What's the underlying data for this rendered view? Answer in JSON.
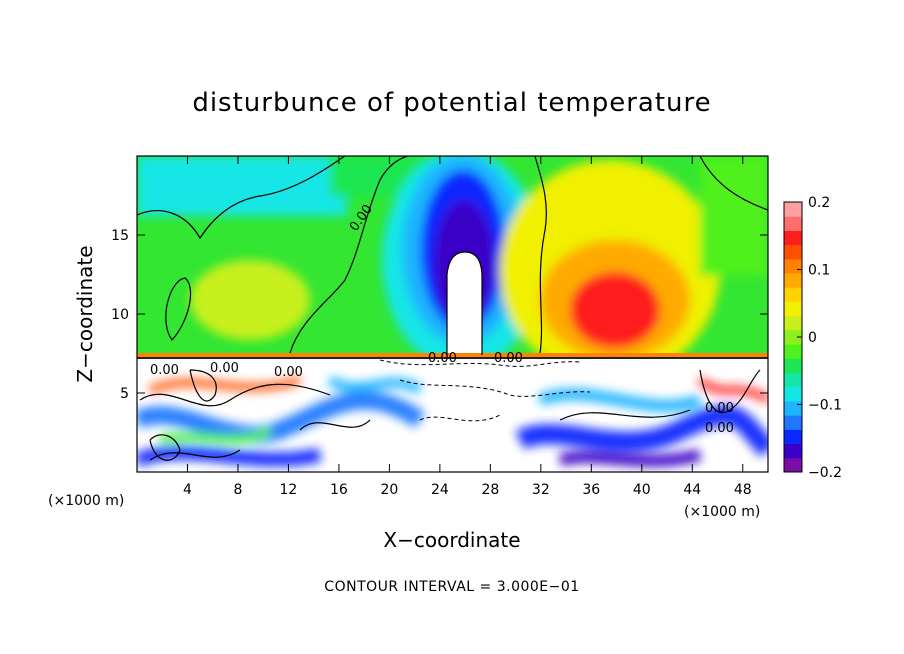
{
  "chart_data": {
    "type": "heatmap",
    "title": "disturbunce of potential temperature",
    "xlabel": "X−coordinate",
    "ylabel": "Z−coordinate",
    "x_unit": "(×1000 m)",
    "y_unit": "(×1000 m)",
    "xlim": [
      0,
      50
    ],
    "ylim": [
      0,
      20
    ],
    "x_ticks": [
      4,
      8,
      12,
      16,
      20,
      24,
      28,
      32,
      36,
      40,
      44,
      48
    ],
    "x_tick_labels": [
      "4",
      "8",
      "12",
      "16",
      "20",
      "24",
      "28",
      "32",
      "36",
      "40",
      "44",
      "48"
    ],
    "y_ticks": [
      5,
      10,
      15
    ],
    "y_tick_labels": [
      "5",
      "10",
      "15"
    ],
    "colorbar": {
      "min": -0.2,
      "max": 0.2,
      "ticks": [
        0.2,
        0.1,
        0,
        -0.1,
        -0.2
      ],
      "tick_labels": [
        "0.2",
        "0.1",
        "0",
        "−0.1",
        "−0.2"
      ],
      "colors": [
        "#7a0ea6",
        "#3a00c8",
        "#0a28ff",
        "#1e78ff",
        "#1eb4ff",
        "#14e6e6",
        "#14e6aa",
        "#1ee650",
        "#50f01e",
        "#8cf01e",
        "#c8f01e",
        "#f0f000",
        "#ffd200",
        "#ffaa00",
        "#ff8200",
        "#ff5000",
        "#ff1e1e",
        "#ff6e6e",
        "#ffa0a0"
      ]
    },
    "contour_interval_text": "CONTOUR INTERVAL = 3.000E−01",
    "contour_labels": [
      "0.00",
      "0.00",
      "0.00",
      "0.00",
      "0.00",
      "0.00",
      "0.00",
      "0.00"
    ],
    "upper_layer": {
      "z_range": [
        7.3,
        20
      ],
      "features": [
        {
          "kind": "negative anomaly core",
          "x_center": 26,
          "min_value": -0.2,
          "note": "white saturated region below z≈14"
        },
        {
          "kind": "positive anomaly core",
          "x_center": 39,
          "max_value": 0.18
        }
      ],
      "background_value": 0.02
    },
    "lower_layer": {
      "z_range": [
        0,
        7.3
      ],
      "description_values": "mixed turbulent field with values saturating beyond ±0.2"
    }
  }
}
